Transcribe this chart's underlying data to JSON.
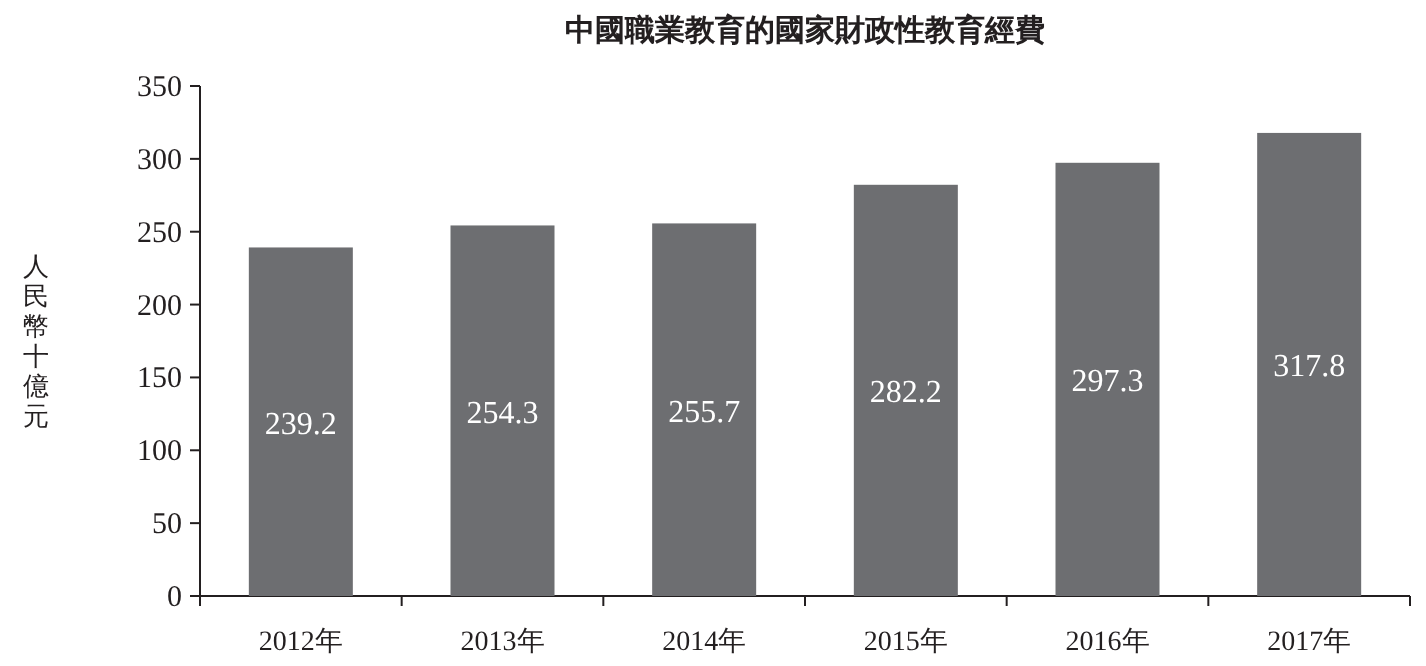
{
  "chart_data": {
    "type": "bar",
    "title": "中國職業教育的國家財政性教育經費",
    "ylabel": "人民幣十億元",
    "categories": [
      "2012年",
      "2013年",
      "2014年",
      "2015年",
      "2016年",
      "2017年"
    ],
    "values": [
      239.2,
      254.3,
      255.7,
      282.2,
      297.3,
      317.8
    ],
    "color": "#6d6e71",
    "ylim": [
      0,
      350
    ],
    "yticks": [
      0,
      50,
      100,
      150,
      200,
      250,
      300,
      350
    ],
    "data_labels": true
  }
}
